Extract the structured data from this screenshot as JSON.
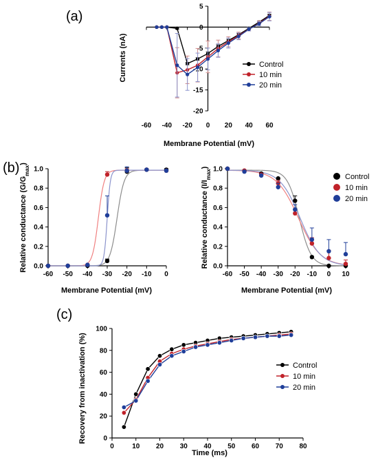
{
  "colors": {
    "control": "#000000",
    "ten": "#c0222a",
    "twenty": "#1f3e99",
    "fit_control": "#8c8c8c",
    "fit_ten": "#f08080",
    "fit_twenty": "#8b93cc"
  },
  "chart_data": [
    {
      "panel": "(a)",
      "type": "line",
      "xlabel": "Membrane Potential (mV)",
      "ylabel": "Currents (nA)",
      "xticks": [
        "-60",
        "-40",
        "-20",
        "0",
        "20",
        "40",
        "60"
      ],
      "yticks": [
        "5",
        "0",
        "-5",
        "-10",
        "-15",
        "-20"
      ],
      "xlim": [
        -60,
        60
      ],
      "ylim": [
        -20,
        5
      ],
      "legend_position": "right",
      "x": [
        -50,
        -45,
        -40,
        -30,
        -20,
        -10,
        0,
        10,
        20,
        30,
        40,
        50,
        60
      ],
      "series": [
        {
          "name": "Control",
          "values": [
            0,
            0,
            0,
            -0.3,
            -8.7,
            -7.6,
            -6.3,
            -4.6,
            -3.2,
            -1.8,
            -0.3,
            1.2,
            2.8
          ]
        },
        {
          "name": "10 min",
          "values": [
            0,
            0,
            0,
            -10.9,
            -10.2,
            -9.1,
            -7.1,
            -5.1,
            -3.5,
            -2.0,
            -0.5,
            0.9,
            2.6
          ]
        },
        {
          "name": "20 min",
          "values": [
            0,
            0,
            0,
            -9.1,
            -11.3,
            -9.6,
            -7.6,
            -5.6,
            -3.8,
            -2.2,
            -0.5,
            0.8,
            2.5
          ]
        }
      ]
    },
    {
      "panel": "(b)",
      "type": "scatter",
      "xlabel": "Membrane Potential (mV)",
      "ylabel": "Relative conductance (G/G",
      "ylabel_sub": "max",
      "ylabel_end": ")",
      "xticks": [
        "-60",
        "-50",
        "-40",
        "-30",
        "-20",
        "-10",
        "0"
      ],
      "yticks": [
        "0.0",
        "0.2",
        "0.4",
        "0.6",
        "0.8",
        "1.0"
      ],
      "xlim": [
        -60,
        0
      ],
      "ylim": [
        0,
        1
      ],
      "x": [
        -60,
        -50,
        -40,
        -30,
        -20,
        -10,
        0
      ],
      "series": [
        {
          "name": "Control",
          "values": [
            0.0,
            0.0,
            0.0,
            0.05,
            0.97,
            0.99,
            0.99
          ]
        },
        {
          "name": "10 min",
          "values": [
            0.0,
            0.0,
            0.01,
            0.94,
            0.98,
            0.99,
            0.98
          ]
        },
        {
          "name": "20 min",
          "values": [
            0.0,
            0.0,
            0.01,
            0.52,
            0.98,
            0.99,
            0.98
          ]
        }
      ]
    },
    {
      "panel": "(b) right",
      "type": "scatter",
      "xlabel": "Membrane Potential (mV)",
      "ylabel": "Relative conductance (I/I",
      "ylabel_sub": "max",
      "ylabel_end": ")",
      "xticks": [
        "-60",
        "-50",
        "-40",
        "-30",
        "-20",
        "-10",
        "0",
        "10"
      ],
      "yticks": [
        "0.0",
        "0.2",
        "0.4",
        "0.6",
        "0.8",
        "1.0"
      ],
      "xlim": [
        -60,
        10
      ],
      "ylim": [
        0,
        1
      ],
      "legend_position": "right",
      "x": [
        -60,
        -50,
        -40,
        -30,
        -20,
        -10,
        0,
        10
      ],
      "series": [
        {
          "name": "Control",
          "values": [
            1.0,
            0.98,
            0.95,
            0.9,
            0.67,
            0.09,
            0.0,
            0.0
          ]
        },
        {
          "name": "10 min",
          "values": [
            1.0,
            0.98,
            0.94,
            0.85,
            0.54,
            0.23,
            0.08,
            0.02
          ]
        },
        {
          "name": "20 min",
          "values": [
            1.0,
            0.97,
            0.93,
            0.81,
            0.58,
            0.27,
            0.15,
            0.12
          ]
        }
      ]
    },
    {
      "panel": "(c)",
      "type": "line",
      "xlabel": "Time (ms)",
      "ylabel": "Recovery from inactivation (%)",
      "xticks": [
        "0",
        "10",
        "20",
        "30",
        "40",
        "50",
        "60",
        "70",
        "80"
      ],
      "yticks": [
        "0",
        "20",
        "40",
        "60",
        "80",
        "100"
      ],
      "xlim": [
        0,
        80
      ],
      "ylim": [
        0,
        100
      ],
      "legend_position": "right",
      "x": [
        5,
        10,
        15,
        20,
        25,
        30,
        35,
        40,
        45,
        50,
        55,
        60,
        65,
        70,
        75
      ],
      "series": [
        {
          "name": "Control",
          "values": [
            10,
            40,
            63,
            75,
            81,
            85,
            87,
            89,
            91,
            92,
            93,
            94,
            95,
            96,
            97
          ]
        },
        {
          "name": "10 min",
          "values": [
            23,
            35,
            55,
            70,
            77,
            81,
            84,
            86,
            88,
            90,
            91,
            92,
            93,
            94,
            95
          ]
        },
        {
          "name": "20 min",
          "values": [
            28,
            34,
            52,
            67,
            75,
            79,
            83,
            85,
            87,
            89,
            91,
            92,
            93,
            93,
            94
          ]
        }
      ]
    }
  ]
}
